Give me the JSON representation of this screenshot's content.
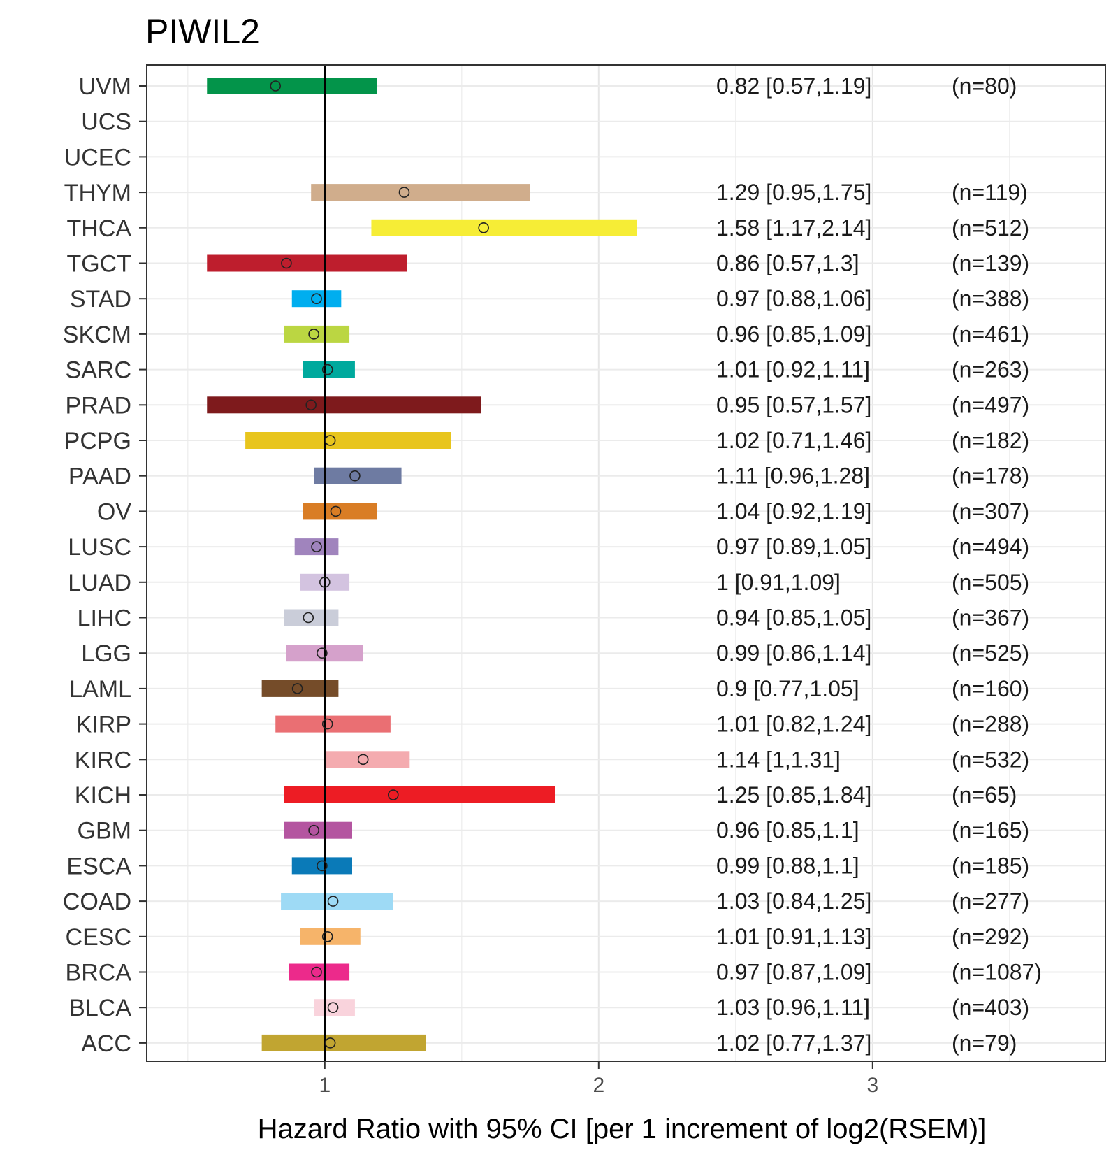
{
  "chart_data": {
    "type": "forest",
    "title": "PIWIL2",
    "xlabel": "Hazard Ratio with 95% CI [per 1 increment of log2(RSEM)]",
    "ylabel": "",
    "xlim": [
      0.35,
      3.85
    ],
    "xticks": [
      1,
      2,
      3
    ],
    "xtick_labels": [
      "1",
      "2",
      "3"
    ],
    "reference_line": 1,
    "grid": true,
    "rows": [
      {
        "label": "UVM",
        "hr": 0.82,
        "lo": 0.57,
        "hi": 1.19,
        "ci_text": "0.82 [0.57,1.19]",
        "n_text": "(n=80)",
        "color": "#03944a"
      },
      {
        "label": "UCS",
        "hr": null,
        "lo": null,
        "hi": null,
        "ci_text": "",
        "n_text": "",
        "color": "#ffffff"
      },
      {
        "label": "UCEC",
        "hr": null,
        "lo": null,
        "hi": null,
        "ci_text": "",
        "n_text": "",
        "color": "#ffffff"
      },
      {
        "label": "THYM",
        "hr": 1.29,
        "lo": 0.95,
        "hi": 1.75,
        "ci_text": "1.29 [0.95,1.75]",
        "n_text": "(n=119)",
        "color": "#d0ad8c"
      },
      {
        "label": "THCA",
        "hr": 1.58,
        "lo": 1.17,
        "hi": 2.14,
        "ci_text": "1.58 [1.17,2.14]",
        "n_text": "(n=512)",
        "color": "#f6ed36"
      },
      {
        "label": "TGCT",
        "hr": 0.86,
        "lo": 0.57,
        "hi": 1.3,
        "ci_text": "0.86 [0.57,1.3]",
        "n_text": "(n=139)",
        "color": "#be1e2d"
      },
      {
        "label": "STAD",
        "hr": 0.97,
        "lo": 0.88,
        "hi": 1.06,
        "ci_text": "0.97 [0.88,1.06]",
        "n_text": "(n=388)",
        "color": "#00aeef"
      },
      {
        "label": "SKCM",
        "hr": 0.96,
        "lo": 0.85,
        "hi": 1.09,
        "ci_text": "0.96 [0.85,1.09]",
        "n_text": "(n=461)",
        "color": "#bbd642"
      },
      {
        "label": "SARC",
        "hr": 1.01,
        "lo": 0.92,
        "hi": 1.11,
        "ci_text": "1.01 [0.92,1.11]",
        "n_text": "(n=263)",
        "color": "#00a99d"
      },
      {
        "label": "PRAD",
        "hr": 0.95,
        "lo": 0.57,
        "hi": 1.57,
        "ci_text": "0.95 [0.57,1.57]",
        "n_text": "(n=497)",
        "color": "#7e1a1c"
      },
      {
        "label": "PCPG",
        "hr": 1.02,
        "lo": 0.71,
        "hi": 1.46,
        "ci_text": "1.02 [0.71,1.46]",
        "n_text": "(n=182)",
        "color": "#e8c51d"
      },
      {
        "label": "PAAD",
        "hr": 1.11,
        "lo": 0.96,
        "hi": 1.28,
        "ci_text": "1.11 [0.96,1.28]",
        "n_text": "(n=178)",
        "color": "#6e7ba2"
      },
      {
        "label": "OV",
        "hr": 1.04,
        "lo": 0.92,
        "hi": 1.19,
        "ci_text": "1.04 [0.92,1.19]",
        "n_text": "(n=307)",
        "color": "#d97d25"
      },
      {
        "label": "LUSC",
        "hr": 0.97,
        "lo": 0.89,
        "hi": 1.05,
        "ci_text": "0.97 [0.89,1.05]",
        "n_text": "(n=494)",
        "color": "#a084bd"
      },
      {
        "label": "LUAD",
        "hr": 1,
        "lo": 0.91,
        "hi": 1.09,
        "ci_text": "1 [0.91,1.09]",
        "n_text": "(n=505)",
        "color": "#d3c3e0"
      },
      {
        "label": "LIHC",
        "hr": 0.94,
        "lo": 0.85,
        "hi": 1.05,
        "ci_text": "0.94 [0.85,1.05]",
        "n_text": "(n=367)",
        "color": "#cacdd9"
      },
      {
        "label": "LGG",
        "hr": 0.99,
        "lo": 0.86,
        "hi": 1.14,
        "ci_text": "0.99 [0.86,1.14]",
        "n_text": "(n=525)",
        "color": "#d5a1cb"
      },
      {
        "label": "LAML",
        "hr": 0.9,
        "lo": 0.77,
        "hi": 1.05,
        "ci_text": "0.9 [0.77,1.05]",
        "n_text": "(n=160)",
        "color": "#754c29"
      },
      {
        "label": "KIRP",
        "hr": 1.01,
        "lo": 0.82,
        "hi": 1.24,
        "ci_text": "1.01 [0.82,1.24]",
        "n_text": "(n=288)",
        "color": "#ea6f73"
      },
      {
        "label": "KIRC",
        "hr": 1.14,
        "lo": 1,
        "hi": 1.31,
        "ci_text": "1.14 [1,1.31]",
        "n_text": "(n=532)",
        "color": "#f4abaf"
      },
      {
        "label": "KICH",
        "hr": 1.25,
        "lo": 0.85,
        "hi": 1.84,
        "ci_text": "1.25 [0.85,1.84]",
        "n_text": "(n=65)",
        "color": "#ed1c24"
      },
      {
        "label": "GBM",
        "hr": 0.96,
        "lo": 0.85,
        "hi": 1.1,
        "ci_text": "0.96 [0.85,1.1]",
        "n_text": "(n=165)",
        "color": "#b455a0"
      },
      {
        "label": "ESCA",
        "hr": 0.99,
        "lo": 0.88,
        "hi": 1.1,
        "ci_text": "0.99 [0.88,1.1]",
        "n_text": "(n=185)",
        "color": "#0a7ab8"
      },
      {
        "label": "COAD",
        "hr": 1.03,
        "lo": 0.84,
        "hi": 1.25,
        "ci_text": "1.03 [0.84,1.25]",
        "n_text": "(n=277)",
        "color": "#9edaf5"
      },
      {
        "label": "CESC",
        "hr": 1.01,
        "lo": 0.91,
        "hi": 1.13,
        "ci_text": "1.01 [0.91,1.13]",
        "n_text": "(n=292)",
        "color": "#f6b46a"
      },
      {
        "label": "BRCA",
        "hr": 0.97,
        "lo": 0.87,
        "hi": 1.09,
        "ci_text": "0.97 [0.87,1.09]",
        "n_text": "(n=1087)",
        "color": "#ec2a8b"
      },
      {
        "label": "BLCA",
        "hr": 1.03,
        "lo": 0.96,
        "hi": 1.11,
        "ci_text": "1.03 [0.96,1.11]",
        "n_text": "(n=403)",
        "color": "#f9d3dc"
      },
      {
        "label": "ACC",
        "hr": 1.02,
        "lo": 0.77,
        "hi": 1.37,
        "ci_text": "1.02 [0.77,1.37]",
        "n_text": "(n=79)",
        "color": "#c1a531"
      }
    ]
  }
}
